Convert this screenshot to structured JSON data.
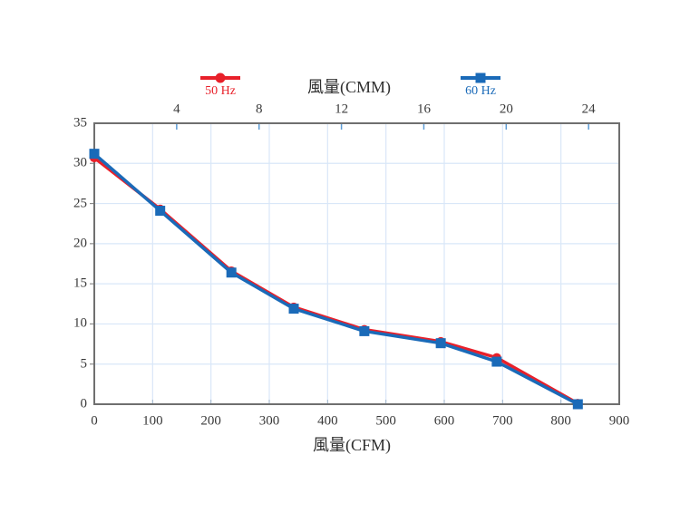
{
  "chart_data": {
    "type": "line",
    "title": "風量(CMM)",
    "xlabel": "風量(CFM)",
    "top_axis": {
      "label": "風量(CMM)",
      "ticks": [
        4,
        8,
        12,
        16,
        20,
        24
      ],
      "cfm_per_cmm": 35.31
    },
    "bottom_axis": {
      "label": "風量(CFM)",
      "ticks": [
        0,
        100,
        200,
        300,
        400,
        500,
        600,
        700,
        800,
        900
      ],
      "range": [
        0,
        900
      ]
    },
    "y_axis": {
      "ticks": [
        0,
        5,
        10,
        15,
        20,
        25,
        30,
        35
      ],
      "range": [
        0,
        35
      ]
    },
    "grid": true,
    "legend_position": "top",
    "colors": {
      "grid": "#d9e7f8",
      "frame": "#6f6f6f",
      "text": "#3a3a3a",
      "top_tick": "#5b9bd5",
      "left_tick": "#8a8a8a",
      "bottom_tick": "#9fb4ca"
    },
    "series": [
      {
        "name": "50 Hz",
        "color": "#e8202a",
        "marker": "circle",
        "points": [
          [
            0,
            30.7
          ],
          [
            113,
            24.3
          ],
          [
            235,
            16.6
          ],
          [
            342,
            12.1
          ],
          [
            463,
            9.3
          ],
          [
            594,
            7.8
          ],
          [
            690,
            5.8
          ],
          [
            829,
            0.1
          ]
        ]
      },
      {
        "name": "60 Hz",
        "color": "#1a6ab8",
        "marker": "square",
        "points": [
          [
            0,
            31.2
          ],
          [
            113,
            24.1
          ],
          [
            235,
            16.4
          ],
          [
            342,
            11.9
          ],
          [
            463,
            9.1
          ],
          [
            594,
            7.6
          ],
          [
            690,
            5.3
          ],
          [
            829,
            0
          ]
        ]
      }
    ]
  }
}
